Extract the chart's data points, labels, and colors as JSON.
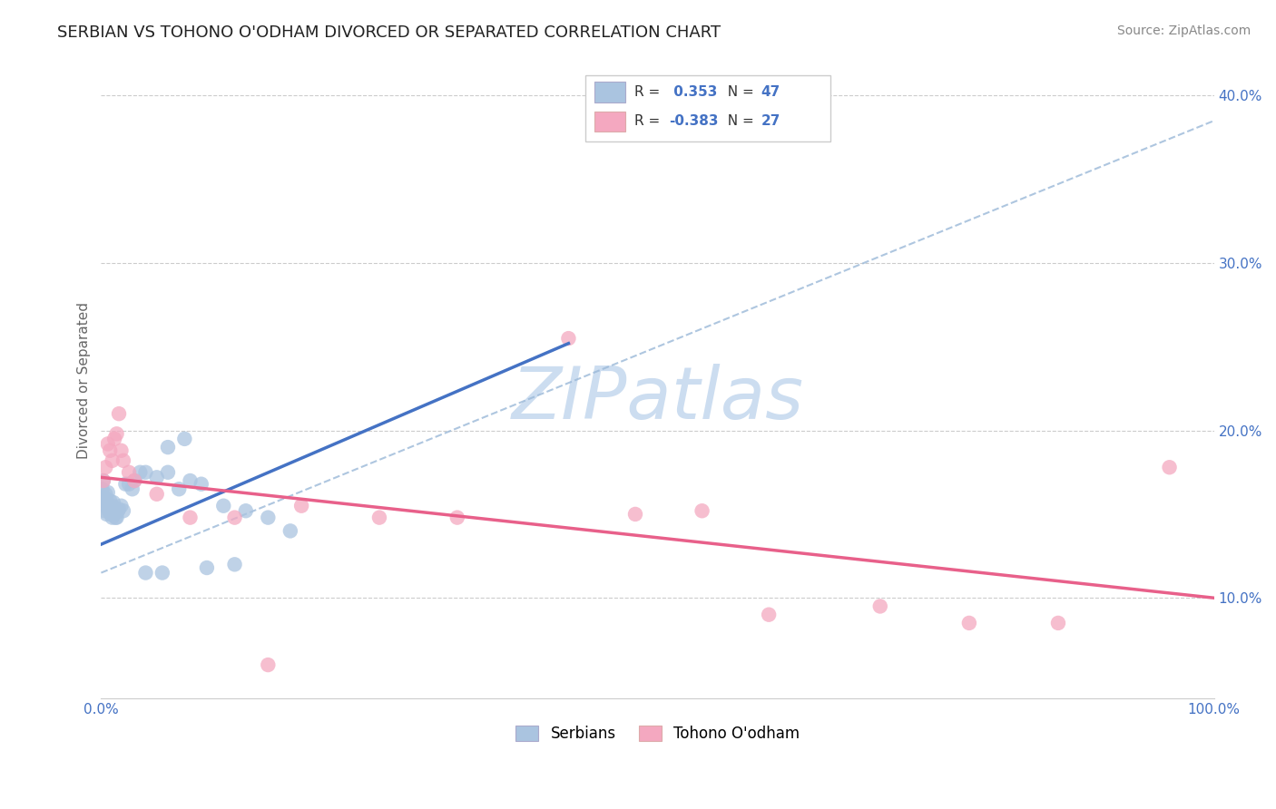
{
  "title": "SERBIAN VS TOHONO O'ODHAM DIVORCED OR SEPARATED CORRELATION CHART",
  "source": "Source: ZipAtlas.com",
  "ylabel": "Divorced or Separated",
  "xlim": [
    0.0,
    1.0
  ],
  "ylim": [
    0.04,
    0.42
  ],
  "y_tick_vals": [
    0.1,
    0.2,
    0.3,
    0.4
  ],
  "y_tick_labels": [
    "10.0%",
    "20.0%",
    "30.0%",
    "40.0%"
  ],
  "x_tick_labels": [
    "0.0%",
    "100.0%"
  ],
  "legend_label_serbians": "Serbians",
  "legend_label_tohono": "Tohono O'odham",
  "R_blue": 0.353,
  "N_blue": 47,
  "R_pink": -0.383,
  "N_pink": 27,
  "blue_color": "#aac4e0",
  "blue_line_color": "#4472c4",
  "pink_color": "#f4a8c0",
  "pink_line_color": "#e8608a",
  "dash_color": "#9ab8d8",
  "watermark_color": "#ccddf0",
  "background_color": "#ffffff",
  "blue_scatter_x": [
    0.001,
    0.002,
    0.002,
    0.003,
    0.003,
    0.004,
    0.004,
    0.005,
    0.005,
    0.006,
    0.006,
    0.007,
    0.007,
    0.008,
    0.008,
    0.009,
    0.01,
    0.01,
    0.011,
    0.012,
    0.013,
    0.014,
    0.015,
    0.016,
    0.018,
    0.02,
    0.022,
    0.025,
    0.028,
    0.03,
    0.035,
    0.04,
    0.05,
    0.06,
    0.07,
    0.08,
    0.09,
    0.11,
    0.13,
    0.15,
    0.17,
    0.06,
    0.075,
    0.04,
    0.055,
    0.095,
    0.12
  ],
  "blue_scatter_y": [
    0.165,
    0.158,
    0.17,
    0.152,
    0.16,
    0.155,
    0.162,
    0.15,
    0.158,
    0.163,
    0.155,
    0.155,
    0.152,
    0.153,
    0.158,
    0.15,
    0.148,
    0.155,
    0.157,
    0.15,
    0.148,
    0.148,
    0.152,
    0.153,
    0.155,
    0.152,
    0.168,
    0.168,
    0.165,
    0.17,
    0.175,
    0.175,
    0.172,
    0.175,
    0.165,
    0.17,
    0.168,
    0.155,
    0.152,
    0.148,
    0.14,
    0.19,
    0.195,
    0.115,
    0.115,
    0.118,
    0.12
  ],
  "pink_scatter_x": [
    0.002,
    0.004,
    0.006,
    0.008,
    0.01,
    0.012,
    0.014,
    0.016,
    0.018,
    0.02,
    0.025,
    0.03,
    0.05,
    0.08,
    0.12,
    0.18,
    0.25,
    0.32,
    0.48,
    0.6,
    0.7,
    0.78,
    0.86,
    0.96,
    0.42,
    0.54,
    0.15
  ],
  "pink_scatter_y": [
    0.17,
    0.178,
    0.192,
    0.188,
    0.182,
    0.195,
    0.198,
    0.21,
    0.188,
    0.182,
    0.175,
    0.17,
    0.162,
    0.148,
    0.148,
    0.155,
    0.148,
    0.148,
    0.15,
    0.09,
    0.095,
    0.085,
    0.085,
    0.178,
    0.255,
    0.152,
    0.06
  ],
  "blue_line_x0": 0.0,
  "blue_line_y0": 0.132,
  "blue_line_x1": 0.42,
  "blue_line_y1": 0.252,
  "pink_line_x0": 0.0,
  "pink_line_y0": 0.172,
  "pink_line_x1": 1.0,
  "pink_line_y1": 0.1,
  "dash_line_x0": 0.0,
  "dash_line_y0": 0.115,
  "dash_line_x1": 1.0,
  "dash_line_y1": 0.385
}
